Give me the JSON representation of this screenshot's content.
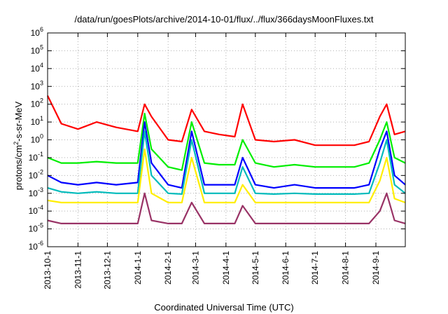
{
  "chart_data": {
    "type": "line",
    "title": "/data/run/goesPlots/archive/2014-10-01/flux/../flux/366daysMoonFluxes.txt",
    "xlabel": "Coordinated Universal Time (UTC)",
    "ylabel_parts": [
      "protons/cm",
      "2",
      "-s-sr-MeV"
    ],
    "yscale": "log",
    "ylim_exp": [
      -6,
      6
    ],
    "yticks": [
      {
        "base": "10",
        "exp": "-6"
      },
      {
        "base": "10",
        "exp": "-5"
      },
      {
        "base": "10",
        "exp": "-4"
      },
      {
        "base": "10",
        "exp": "-3"
      },
      {
        "base": "10",
        "exp": "-2"
      },
      {
        "base": "10",
        "exp": "-1"
      },
      {
        "base": "10",
        "exp": "0"
      },
      {
        "base": "10",
        "exp": "1"
      },
      {
        "base": "10",
        "exp": "2"
      },
      {
        "base": "10",
        "exp": "3"
      },
      {
        "base": "10",
        "exp": "4"
      },
      {
        "base": "10",
        "exp": "5"
      },
      {
        "base": "10",
        "exp": "6"
      }
    ],
    "xlim": [
      "2013-10-01",
      "2014-10-01"
    ],
    "xticks": [
      {
        "label": "2013-10-1",
        "date": "2013-10-01"
      },
      {
        "label": "2013-11-1",
        "date": "2013-11-01"
      },
      {
        "label": "2013-12-1",
        "date": "2013-12-01"
      },
      {
        "label": "2014-1-1",
        "date": "2014-01-01"
      },
      {
        "label": "2014-2-1",
        "date": "2014-02-01"
      },
      {
        "label": "2014-3-1",
        "date": "2014-03-01"
      },
      {
        "label": "2014-4-1",
        "date": "2014-04-01"
      },
      {
        "label": "2014-5-1",
        "date": "2014-05-01"
      },
      {
        "label": "2014-6-1",
        "date": "2014-06-01"
      },
      {
        "label": "2014-7-1",
        "date": "2014-07-01"
      },
      {
        "label": "2014-8-1",
        "date": "2014-08-01"
      },
      {
        "label": "2014-9-1",
        "date": "2014-09-01"
      }
    ],
    "grid": true,
    "legend": "none",
    "series": [
      {
        "color": "#ff0000",
        "x": [
          "2013-10-01",
          "2013-10-15",
          "2013-11-01",
          "2013-11-20",
          "2013-12-10",
          "2014-01-01",
          "2014-01-08",
          "2014-01-15",
          "2014-02-01",
          "2014-02-15",
          "2014-02-25",
          "2014-03-10",
          "2014-03-25",
          "2014-04-10",
          "2014-04-18",
          "2014-05-01",
          "2014-05-20",
          "2014-06-10",
          "2014-07-01",
          "2014-07-20",
          "2014-08-10",
          "2014-08-25",
          "2014-09-05",
          "2014-09-12",
          "2014-09-20",
          "2014-10-01"
        ],
        "y": [
          300,
          8,
          4,
          10,
          5,
          3,
          100,
          20,
          1,
          0.8,
          50,
          3,
          2,
          1.5,
          100,
          1,
          0.8,
          1,
          0.5,
          0.5,
          0.5,
          0.8,
          20,
          100,
          2,
          3
        ]
      },
      {
        "color": "#00ee00",
        "x": [
          "2013-10-01",
          "2013-10-15",
          "2013-11-01",
          "2013-11-20",
          "2013-12-10",
          "2014-01-01",
          "2014-01-08",
          "2014-01-15",
          "2014-02-01",
          "2014-02-15",
          "2014-02-25",
          "2014-03-10",
          "2014-03-25",
          "2014-04-10",
          "2014-04-18",
          "2014-05-01",
          "2014-05-20",
          "2014-06-10",
          "2014-07-01",
          "2014-07-20",
          "2014-08-10",
          "2014-08-25",
          "2014-09-05",
          "2014-09-12",
          "2014-09-20",
          "2014-10-01"
        ],
        "y": [
          0.1,
          0.05,
          0.05,
          0.06,
          0.05,
          0.05,
          30,
          0.3,
          0.03,
          0.02,
          10,
          0.05,
          0.04,
          0.04,
          1,
          0.05,
          0.03,
          0.04,
          0.03,
          0.03,
          0.03,
          0.05,
          1,
          10,
          0.1,
          0.05
        ]
      },
      {
        "color": "#0000ff",
        "x": [
          "2013-10-01",
          "2013-10-15",
          "2013-11-01",
          "2013-11-20",
          "2013-12-10",
          "2014-01-01",
          "2014-01-08",
          "2014-01-15",
          "2014-02-01",
          "2014-02-15",
          "2014-02-25",
          "2014-03-10",
          "2014-03-25",
          "2014-04-10",
          "2014-04-18",
          "2014-05-01",
          "2014-05-20",
          "2014-06-10",
          "2014-07-01",
          "2014-07-20",
          "2014-08-10",
          "2014-08-25",
          "2014-09-05",
          "2014-09-12",
          "2014-09-20",
          "2014-10-01"
        ],
        "y": [
          0.01,
          0.004,
          0.003,
          0.004,
          0.003,
          0.004,
          10,
          0.05,
          0.003,
          0.002,
          3,
          0.003,
          0.003,
          0.003,
          0.1,
          0.003,
          0.002,
          0.003,
          0.002,
          0.002,
          0.002,
          0.003,
          0.3,
          3,
          0.01,
          0.003
        ]
      },
      {
        "color": "#00bbbb",
        "x": [
          "2013-10-01",
          "2013-10-15",
          "2013-11-01",
          "2013-11-20",
          "2013-12-10",
          "2014-01-01",
          "2014-01-08",
          "2014-01-15",
          "2014-02-01",
          "2014-02-15",
          "2014-02-25",
          "2014-03-10",
          "2014-03-25",
          "2014-04-10",
          "2014-04-18",
          "2014-05-01",
          "2014-05-20",
          "2014-06-10",
          "2014-07-01",
          "2014-07-20",
          "2014-08-10",
          "2014-08-25",
          "2014-09-05",
          "2014-09-12",
          "2014-09-20",
          "2014-10-01"
        ],
        "y": [
          0.002,
          0.0012,
          0.001,
          0.0012,
          0.001,
          0.001,
          3,
          0.01,
          0.001,
          0.0009,
          1,
          0.001,
          0.001,
          0.001,
          0.03,
          0.001,
          0.0009,
          0.001,
          0.0009,
          0.0009,
          0.0009,
          0.001,
          0.05,
          1,
          0.003,
          0.001
        ]
      },
      {
        "color": "#ffee00",
        "x": [
          "2013-10-01",
          "2013-10-15",
          "2013-11-01",
          "2013-11-20",
          "2013-12-10",
          "2014-01-01",
          "2014-01-08",
          "2014-01-15",
          "2014-02-01",
          "2014-02-15",
          "2014-02-25",
          "2014-03-10",
          "2014-03-25",
          "2014-04-10",
          "2014-04-18",
          "2014-05-01",
          "2014-05-20",
          "2014-06-10",
          "2014-07-01",
          "2014-07-20",
          "2014-08-10",
          "2014-08-25",
          "2014-09-05",
          "2014-09-12",
          "2014-09-20",
          "2014-10-01"
        ],
        "y": [
          0.0004,
          0.0003,
          0.0003,
          0.0003,
          0.0003,
          0.0003,
          0.3,
          0.001,
          0.0003,
          0.0003,
          0.1,
          0.0003,
          0.0003,
          0.0003,
          0.003,
          0.0003,
          0.0003,
          0.0003,
          0.0003,
          0.0003,
          0.0003,
          0.0003,
          0.005,
          0.1,
          0.0005,
          0.0003
        ]
      },
      {
        "color": "#993366",
        "x": [
          "2013-10-01",
          "2013-10-15",
          "2013-11-01",
          "2013-11-20",
          "2013-12-10",
          "2014-01-01",
          "2014-01-08",
          "2014-01-15",
          "2014-02-01",
          "2014-02-15",
          "2014-02-25",
          "2014-03-10",
          "2014-03-25",
          "2014-04-10",
          "2014-04-18",
          "2014-05-01",
          "2014-05-20",
          "2014-06-10",
          "2014-07-01",
          "2014-07-20",
          "2014-08-10",
          "2014-08-25",
          "2014-09-05",
          "2014-09-12",
          "2014-09-20",
          "2014-10-01"
        ],
        "y": [
          3e-05,
          2e-05,
          2e-05,
          2e-05,
          2e-05,
          2e-05,
          0.001,
          3e-05,
          2e-05,
          2e-05,
          0.0003,
          2e-05,
          2e-05,
          2e-05,
          0.0002,
          2e-05,
          2e-05,
          2e-05,
          2e-05,
          2e-05,
          2e-05,
          2e-05,
          0.0001,
          0.001,
          3e-05,
          2e-05
        ]
      }
    ]
  }
}
